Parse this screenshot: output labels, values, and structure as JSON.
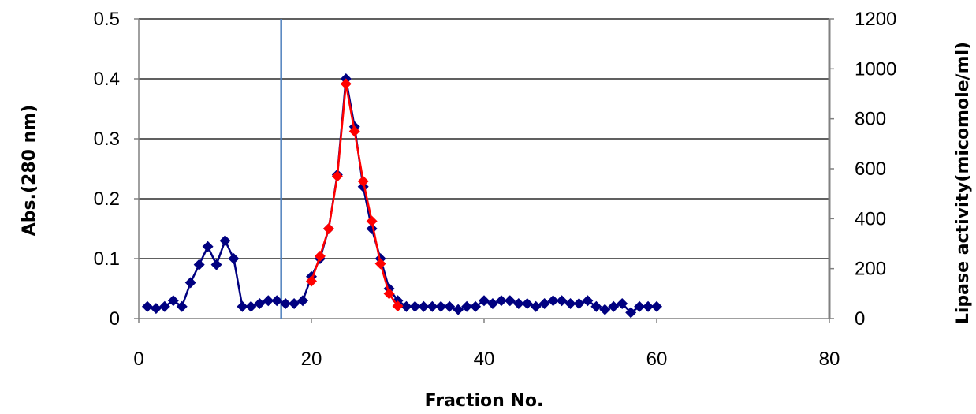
{
  "chart_data": {
    "type": "line",
    "xlabel": "Fraction No.",
    "ylabel_left": "Abs.(280 nm)",
    "ylabel_right": "Lipase activity(micomole/ml)",
    "xlim": [
      0,
      80
    ],
    "ylim_left": [
      0,
      0.5
    ],
    "ylim_right": [
      0,
      1200
    ],
    "x_ticks": [
      0,
      20,
      40,
      60,
      80
    ],
    "y_left_ticks": [
      0,
      0.1,
      0.2,
      0.3,
      0.4,
      0.5
    ],
    "y_right_ticks": [
      0,
      200,
      400,
      600,
      800,
      1000,
      1200
    ],
    "grid": "horizontal",
    "legend": "none",
    "vertical_marker_x": 16.5,
    "colors": {
      "absorbance": "#000080",
      "activity": "#ff0000",
      "marker_line": "#4f81bd",
      "grid": "#000000",
      "right_axis": "#808080"
    },
    "series": [
      {
        "axis": "left",
        "marker": "diamond",
        "x": [
          1,
          2,
          3,
          4,
          5,
          6,
          7,
          8,
          9,
          10,
          11,
          12,
          13,
          14,
          15,
          16,
          17,
          18,
          19,
          20,
          21,
          22,
          23,
          24,
          25,
          26,
          27,
          28,
          29,
          30,
          31,
          32,
          33,
          34,
          35,
          36,
          37,
          38,
          39,
          40,
          41,
          42,
          43,
          44,
          45,
          46,
          47,
          48,
          49,
          50,
          51,
          52,
          53,
          54,
          55,
          56,
          57,
          58,
          59,
          60
        ],
        "values": [
          0.02,
          0.017,
          0.02,
          0.03,
          0.02,
          0.06,
          0.09,
          0.12,
          0.09,
          0.13,
          0.1,
          0.02,
          0.02,
          0.025,
          0.03,
          0.03,
          0.025,
          0.025,
          0.03,
          0.07,
          0.1,
          0.15,
          0.24,
          0.4,
          0.32,
          0.22,
          0.15,
          0.1,
          0.05,
          0.03,
          0.02,
          0.02,
          0.02,
          0.02,
          0.02,
          0.02,
          0.015,
          0.02,
          0.02,
          0.03,
          0.025,
          0.03,
          0.03,
          0.025,
          0.025,
          0.02,
          0.025,
          0.03,
          0.03,
          0.025,
          0.025,
          0.03,
          0.02,
          0.015,
          0.02,
          0.025,
          0.01,
          0.02,
          0.02,
          0.02
        ]
      },
      {
        "axis": "right",
        "marker": "diamond",
        "x": [
          20,
          21,
          22,
          23,
          24,
          25,
          26,
          27,
          28,
          29,
          30
        ],
        "values": [
          150,
          250,
          360,
          570,
          940,
          750,
          550,
          390,
          220,
          100,
          50
        ]
      }
    ]
  }
}
